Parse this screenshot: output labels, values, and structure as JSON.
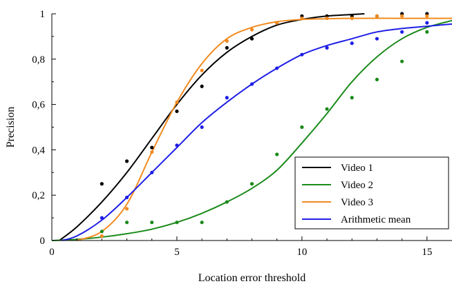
{
  "chart_data": {
    "type": "scatter",
    "title": "",
    "xlabel": "Location error threshold",
    "ylabel": "Precision",
    "xlim": [
      0,
      16
    ],
    "ylim": [
      0,
      1
    ],
    "x_ticks": [
      "0",
      "5",
      "10",
      "15"
    ],
    "y_ticks": [
      "0",
      "0,2",
      "0,4",
      "0,6",
      "0,8",
      "1"
    ],
    "grid": false,
    "legend_position": "bottom-right",
    "series": [
      {
        "name": "Video 1",
        "color": "#000000",
        "points": [
          [
            2,
            0.25
          ],
          [
            3,
            0.35
          ],
          [
            4,
            0.41
          ],
          [
            5,
            0.57
          ],
          [
            6,
            0.68
          ],
          [
            7,
            0.85
          ],
          [
            8,
            0.89
          ],
          [
            9,
            0.96
          ],
          [
            10,
            0.99
          ],
          [
            11,
            0.99
          ],
          [
            12,
            0.99
          ],
          [
            13,
            0.99
          ],
          [
            14,
            1.0
          ],
          [
            15,
            1.0
          ]
        ],
        "fit": [
          [
            0.3,
            0.0
          ],
          [
            1,
            0.06
          ],
          [
            2,
            0.17
          ],
          [
            3,
            0.3
          ],
          [
            4,
            0.45
          ],
          [
            5,
            0.6
          ],
          [
            6,
            0.73
          ],
          [
            7,
            0.83
          ],
          [
            8,
            0.9
          ],
          [
            9,
            0.95
          ],
          [
            10,
            0.975
          ],
          [
            11,
            0.99
          ],
          [
            12,
            0.997
          ],
          [
            12.5,
            1.0
          ]
        ]
      },
      {
        "name": "Video 2",
        "color": "#1a8a1a",
        "points": [
          [
            2,
            0.04
          ],
          [
            3,
            0.08
          ],
          [
            4,
            0.08
          ],
          [
            5,
            0.08
          ],
          [
            6,
            0.08
          ],
          [
            7,
            0.17
          ],
          [
            8,
            0.25
          ],
          [
            9,
            0.38
          ],
          [
            10,
            0.5
          ],
          [
            11,
            0.58
          ],
          [
            12,
            0.63
          ],
          [
            13,
            0.71
          ],
          [
            14,
            0.79
          ],
          [
            15,
            0.92
          ]
        ],
        "fit": [
          [
            0,
            0.0
          ],
          [
            1,
            0.005
          ],
          [
            2,
            0.015
          ],
          [
            3,
            0.03
          ],
          [
            4,
            0.05
          ],
          [
            5,
            0.08
          ],
          [
            6,
            0.12
          ],
          [
            7,
            0.17
          ],
          [
            8,
            0.23
          ],
          [
            9,
            0.31
          ],
          [
            10,
            0.43
          ],
          [
            11,
            0.56
          ],
          [
            12,
            0.7
          ],
          [
            13,
            0.81
          ],
          [
            14,
            0.89
          ],
          [
            15,
            0.94
          ],
          [
            16,
            0.97
          ]
        ]
      },
      {
        "name": "Video 3",
        "color": "#f28a1e",
        "points": [
          [
            2,
            0.02
          ],
          [
            3,
            0.14
          ],
          [
            4,
            0.39
          ],
          [
            5,
            0.61
          ],
          [
            6,
            0.75
          ],
          [
            7,
            0.88
          ],
          [
            8,
            0.93
          ],
          [
            9,
            0.96
          ],
          [
            10,
            0.98
          ],
          [
            11,
            0.98
          ],
          [
            12,
            0.98
          ],
          [
            13,
            0.99
          ],
          [
            14,
            0.99
          ],
          [
            15,
            0.99
          ]
        ],
        "fit": [
          [
            1,
            0.0
          ],
          [
            2,
            0.04
          ],
          [
            3,
            0.16
          ],
          [
            4,
            0.39
          ],
          [
            5,
            0.61
          ],
          [
            6,
            0.78
          ],
          [
            7,
            0.89
          ],
          [
            8,
            0.94
          ],
          [
            9,
            0.965
          ],
          [
            10,
            0.975
          ],
          [
            11,
            0.978
          ],
          [
            12,
            0.98
          ],
          [
            14,
            0.98
          ],
          [
            16,
            0.98
          ]
        ]
      },
      {
        "name": "Arithmetic mean",
        "color": "#1e1ee6",
        "points": [
          [
            2,
            0.1
          ],
          [
            3,
            0.19
          ],
          [
            4,
            0.3
          ],
          [
            5,
            0.42
          ],
          [
            6,
            0.5
          ],
          [
            7,
            0.63
          ],
          [
            8,
            0.69
          ],
          [
            9,
            0.76
          ],
          [
            10,
            0.82
          ],
          [
            11,
            0.85
          ],
          [
            12,
            0.87
          ],
          [
            13,
            0.89
          ],
          [
            14,
            0.92
          ],
          [
            15,
            0.96
          ]
        ],
        "fit": [
          [
            0.4,
            0.0
          ],
          [
            1,
            0.02
          ],
          [
            2,
            0.09
          ],
          [
            3,
            0.19
          ],
          [
            4,
            0.3
          ],
          [
            5,
            0.41
          ],
          [
            6,
            0.52
          ],
          [
            7,
            0.61
          ],
          [
            8,
            0.69
          ],
          [
            9,
            0.76
          ],
          [
            10,
            0.82
          ],
          [
            11,
            0.86
          ],
          [
            12,
            0.89
          ],
          [
            13,
            0.92
          ],
          [
            14,
            0.935
          ],
          [
            15,
            0.945
          ],
          [
            16,
            0.955
          ]
        ]
      }
    ]
  }
}
